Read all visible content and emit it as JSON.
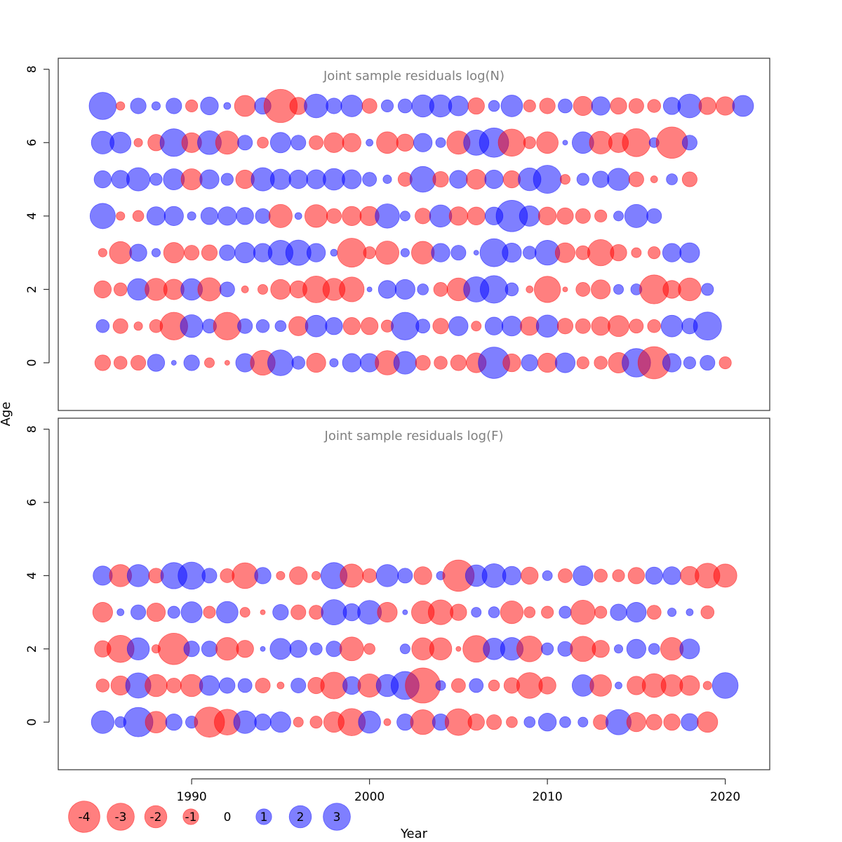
{
  "chart_data": {
    "type": "scatter",
    "subtype": "bubble",
    "xlabel": "Year",
    "ylabel": "Age",
    "xlim": [
      1982.5,
      2022.5
    ],
    "x_ticks": [
      1990,
      2000,
      2010,
      2020
    ],
    "colors": {
      "negative": "#ff0000",
      "positive": "#0000ff",
      "title": "#808080"
    },
    "legend": {
      "placement": "bottom-left",
      "entries": [
        {
          "label": "-4",
          "value": -4
        },
        {
          "label": "-3",
          "value": -3
        },
        {
          "label": "-2",
          "value": -2
        },
        {
          "label": "-1",
          "value": -1
        },
        {
          "label": "0",
          "value": 0
        },
        {
          "label": "1",
          "value": 1
        },
        {
          "label": "2",
          "value": 2
        },
        {
          "label": "3",
          "value": 3
        }
      ]
    },
    "panels": [
      {
        "title": "Joint sample residuals log(N)",
        "ylim": [
          -1.3,
          8.3
        ],
        "y_ticks": [
          0,
          2,
          4,
          6,
          8
        ],
        "start_year": 1985,
        "rows": [
          {
            "age": 7,
            "residuals": [
              3.0,
              -0.3,
              1.0,
              0.3,
              1.0,
              -0.6,
              1.3,
              0.2,
              -1.8,
              1.1,
              -4.5,
              -1.2,
              2.3,
              1.0,
              1.9,
              -0.9,
              0.6,
              0.8,
              2.0,
              2.0,
              1.6,
              -1.1,
              0.5,
              1.9,
              -0.6,
              -1.0,
              0.8,
              -1.5,
              1.4,
              -1.1,
              -0.9,
              -0.7,
              1.2,
              2.3,
              -1.2,
              -1.4,
              1.8
            ]
          },
          {
            "age": 6,
            "residuals": [
              2.1,
              1.8,
              -0.3,
              -1.1,
              3.1,
              -1.6,
              2.3,
              -2.2,
              0.9,
              -0.5,
              1.7,
              0.9,
              -0.8,
              -1.6,
              -1.4,
              0.2,
              -1.9,
              -1.2,
              1.4,
              0.4,
              -2.2,
              2.6,
              3.5,
              -3.0,
              -0.6,
              -1.9,
              0.1,
              1.9,
              -2.1,
              -1.6,
              -3.2,
              0.4,
              -4.0,
              0.9
            ]
          },
          {
            "age": 5,
            "residuals": [
              1.2,
              1.3,
              2.2,
              0.6,
              1.8,
              -1.8,
              1.5,
              0.6,
              -1.4,
              2.2,
              1.7,
              1.4,
              1.5,
              1.9,
              1.5,
              0.8,
              0.3,
              -0.8,
              2.7,
              -1.0,
              1.3,
              -1.6,
              1.4,
              -1.2,
              2.1,
              3.2,
              -0.4,
              0.6,
              1.1,
              2.0,
              -0.9,
              -0.2,
              0.5,
              -0.9
            ]
          },
          {
            "age": 4,
            "residuals": [
              2.6,
              -0.3,
              -0.5,
              1.4,
              1.5,
              0.3,
              1.2,
              1.4,
              1.2,
              0.9,
              -2.2,
              0.2,
              -2.1,
              -0.9,
              -1.5,
              -1.5,
              2.4,
              0.4,
              -1.0,
              2.0,
              -1.4,
              -1.3,
              1.3,
              4.0,
              1.7,
              -1.3,
              -1.1,
              -0.9,
              -0.6,
              0.4,
              2.2,
              0.9
            ]
          },
          {
            "age": 3,
            "residuals": [
              -0.3,
              -2.0,
              1.2,
              0.3,
              -1.7,
              -0.9,
              -1.0,
              1.0,
              1.7,
              1.4,
              2.5,
              2.6,
              1.4,
              0.2,
              -3.4,
              -0.6,
              -2.2,
              0.3,
              -2.1,
              1.4,
              0.9,
              0.1,
              3.2,
              1.5,
              0.7,
              2.5,
              -1.6,
              -0.8,
              -2.8,
              -1.1,
              -0.4,
              -0.6,
              1.4,
              1.6
            ]
          },
          {
            "age": 2,
            "residuals": [
              -1.2,
              -0.7,
              1.9,
              -2.0,
              -1.7,
              1.9,
              -2.2,
              0.9,
              -0.2,
              -0.4,
              -1.6,
              -1.2,
              -2.9,
              -2.0,
              -2.5,
              0.1,
              1.3,
              1.6,
              0.5,
              -0.8,
              -2.1,
              2.6,
              3.1,
              0.7,
              -0.2,
              -2.8,
              -0.1,
              -0.8,
              -1.5,
              0.4,
              0.5,
              -3.4,
              -1.3,
              -2.1,
              0.6
            ]
          },
          {
            "age": 1,
            "residuals": [
              0.7,
              -0.9,
              -0.3,
              -0.7,
              -3.1,
              2.1,
              0.8,
              -3.1,
              0.9,
              0.7,
              0.5,
              -1.5,
              1.9,
              1.2,
              -1.2,
              -1.2,
              -0.6,
              3.1,
              0.8,
              -1.0,
              1.5,
              -0.4,
              1.3,
              1.6,
              -1.4,
              2.0,
              -1.0,
              -0.9,
              -1.4,
              -1.8,
              -0.8,
              -0.7,
              1.9,
              1.0,
              3.2
            ]
          },
          {
            "age": 0,
            "residuals": [
              -1.0,
              -0.7,
              -0.9,
              1.2,
              0.1,
              1.0,
              -0.4,
              -0.1,
              1.4,
              -2.5,
              2.7,
              0.7,
              -1.5,
              0.3,
              1.4,
              1.4,
              -2.4,
              2.1,
              -0.9,
              -0.7,
              -1.0,
              -1.6,
              4.0,
              -1.3,
              1.1,
              -1.5,
              1.6,
              -0.6,
              -0.7,
              -1.7,
              3.3,
              -4.2,
              1.4,
              0.6,
              0.9,
              -0.6
            ]
          }
        ]
      },
      {
        "title": "Joint sample residuals log(F)",
        "ylim": [
          -1.3,
          8.3
        ],
        "y_ticks": [
          0,
          2,
          4,
          6,
          8
        ],
        "start_year": 1985,
        "rows": [
          {
            "age": 4,
            "residuals": [
              1.5,
              -2.0,
              2.0,
              -0.9,
              2.8,
              3.0,
              0.9,
              -0.8,
              -2.7,
              1.1,
              -0.3,
              -1.3,
              -0.3,
              2.8,
              -2.2,
              -0.8,
              2.0,
              0.9,
              -1.3,
              0.3,
              -4.0,
              1.9,
              2.3,
              1.4,
              -1.2,
              0.4,
              -0.8,
              1.6,
              -0.7,
              -0.6,
              -1.1,
              1.2,
              1.3,
              -1.4,
              -2.5,
              -2.2
            ]
          },
          {
            "age": 3,
            "residuals": [
              -1.6,
              0.2,
              0.9,
              -1.4,
              0.6,
              1.8,
              -0.6,
              1.9,
              -0.4,
              -0.1,
              1.0,
              -0.9,
              -0.8,
              2.6,
              1.2,
              2.3,
              -1.6,
              0.1,
              -2.1,
              -2.5,
              -1.1,
              0.4,
              0.5,
              -2.1,
              -0.5,
              -0.6,
              0.6,
              -2.4,
              -0.6,
              1.1,
              1.6,
              -0.8,
              0.3,
              0.2,
              -0.7
            ]
          },
          {
            "age": 2,
            "residuals": [
              -1.1,
              -3.0,
              2.0,
              -0.3,
              -4.0,
              1.0,
              1.0,
              -2.1,
              -1.2,
              0.1,
              1.8,
              1.2,
              0.6,
              1.0,
              -2.3,
              -0.5,
              0.0,
              0.4,
              -2.0,
              -2.0,
              -0.1,
              -2.9,
              1.9,
              2.1,
              -2.7,
              0.6,
              0.9,
              -2.6,
              -1.2,
              0.3,
              1.5,
              0.5,
              -2.1,
              1.6
            ]
          },
          {
            "age": 1,
            "residuals": [
              -0.7,
              -1.5,
              2.6,
              -2.0,
              -0.9,
              -2.0,
              1.6,
              1.0,
              0.8,
              -0.9,
              -0.2,
              0.9,
              -1.1,
              -2.9,
              1.3,
              -2.2,
              2.0,
              3.2,
              -5.0,
              0.4,
              -0.8,
              0.8,
              -0.5,
              -1.0,
              -2.7,
              -1.2,
              0.0,
              1.9,
              -1.9,
              0.2,
              -1.4,
              -2.3,
              -1.9,
              -1.6,
              -0.3,
              2.7
            ]
          },
          {
            "age": 0,
            "residuals": [
              2.1,
              0.5,
              3.5,
              -1.9,
              1.1,
              0.6,
              -3.7,
              -2.7,
              2.1,
              1.1,
              1.7,
              -0.4,
              -0.6,
              -1.7,
              -3.0,
              2.0,
              -0.2,
              1.1,
              -2.5,
              1.1,
              -2.9,
              -1.1,
              -0.9,
              -0.5,
              0.5,
              1.3,
              0.5,
              0.4,
              -0.9,
              2.6,
              -1.5,
              -1.0,
              -1.1,
              1.2,
              -1.7
            ]
          }
        ]
      }
    ]
  }
}
